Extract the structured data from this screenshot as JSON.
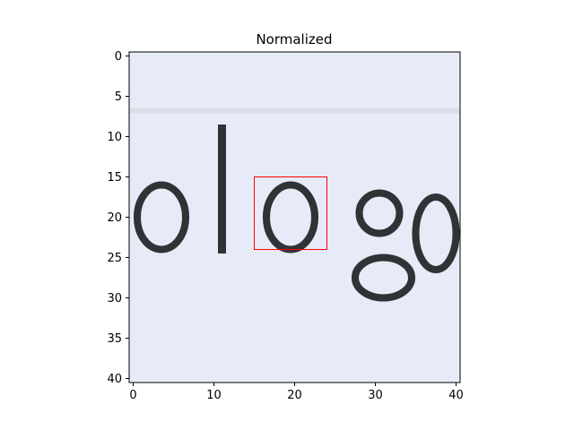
{
  "figure": {
    "title": "Normalized"
  },
  "image": {
    "rows": 41,
    "cols": 41,
    "background_color": "#e6ebf7",
    "ink_color": "#1a2020",
    "box_color": "#ff0000",
    "x_ticks": [
      0,
      10,
      20,
      30,
      40
    ],
    "y_ticks": [
      0,
      5,
      10,
      15,
      20,
      25,
      30,
      35,
      40
    ],
    "highlight_box": {
      "x0": 15,
      "y0": 15,
      "x1": 24,
      "y1": 24
    },
    "strokes": [
      {
        "name": "letter-o-left",
        "type": "ellipse",
        "cx": 3.5,
        "cy": 20,
        "rx": 3,
        "ry": 4
      },
      {
        "name": "letter-l",
        "type": "rect",
        "x0": 11,
        "y0": 9,
        "x1": 12,
        "y1": 24
      },
      {
        "name": "letter-o-mid",
        "type": "ellipse",
        "cx": 19.5,
        "cy": 20,
        "rx": 3,
        "ry": 4
      },
      {
        "name": "letter-g-bowl",
        "type": "ellipse",
        "cx": 30.5,
        "cy": 19.5,
        "rx": 2.5,
        "ry": 2.5
      },
      {
        "name": "letter-g-loop",
        "type": "ellipse",
        "cx": 31,
        "cy": 27.5,
        "rx": 3.5,
        "ry": 2.5
      },
      {
        "name": "letter-y-partial",
        "type": "ellipse",
        "cx": 37.5,
        "cy": 22,
        "rx": 2.5,
        "ry": 4.5
      }
    ]
  }
}
